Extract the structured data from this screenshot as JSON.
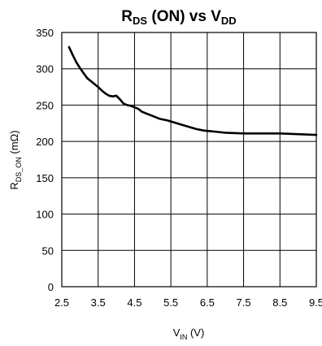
{
  "chart_data": {
    "type": "line",
    "title": {
      "parts": [
        {
          "text": "R",
          "sub": false
        },
        {
          "text": "DS",
          "sub": true
        },
        {
          "text": " (ON) vs V",
          "sub": false
        },
        {
          "text": "DD",
          "sub": true
        }
      ]
    },
    "xlabel": {
      "parts": [
        {
          "text": "V",
          "sub": false
        },
        {
          "text": "IN",
          "sub": true
        },
        {
          "text": " (V)",
          "sub": false
        }
      ]
    },
    "ylabel": {
      "parts": [
        {
          "text": "R",
          "sub": false
        },
        {
          "text": "DS_ON",
          "sub": true
        },
        {
          "text": " (mΩ)",
          "sub": false
        }
      ]
    },
    "xlim": [
      2.5,
      9.5
    ],
    "ylim": [
      0,
      350
    ],
    "xticks": [
      "2.5",
      "3.5",
      "4.5",
      "5.5",
      "6.5",
      "7.5",
      "8.5",
      "9.5"
    ],
    "yticks": [
      "0",
      "50",
      "100",
      "150",
      "200",
      "250",
      "300",
      "350"
    ],
    "grid": true,
    "legend": "none",
    "line_color": "#000000",
    "series": [
      {
        "x": [
          2.7,
          2.8,
          2.9,
          3.0,
          3.1,
          3.2,
          3.3,
          3.4,
          3.5,
          3.6,
          3.7,
          3.8,
          3.9,
          4.0,
          4.1,
          4.2,
          4.3,
          4.4,
          4.5,
          4.6,
          4.7,
          4.8,
          4.9,
          5.0,
          5.2,
          5.4,
          5.6,
          5.8,
          6.0,
          6.2,
          6.4,
          6.6,
          6.8,
          7.0,
          7.5,
          8.0,
          8.5,
          9.0,
          9.5
        ],
        "y": [
          330,
          319,
          309,
          301,
          294,
          287,
          283,
          279,
          275,
          270,
          266,
          263,
          262,
          263,
          258,
          252,
          250,
          249,
          247,
          245,
          241,
          239,
          237,
          235,
          231,
          229,
          226,
          223,
          220,
          217,
          215,
          214,
          213,
          212,
          211,
          211,
          211,
          210,
          209
        ]
      }
    ]
  }
}
